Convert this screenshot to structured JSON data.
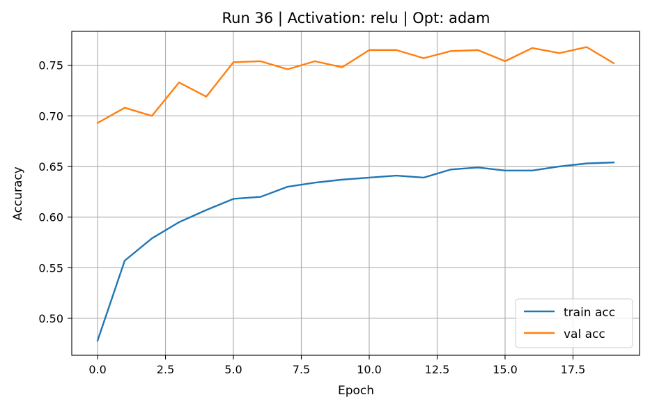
{
  "chart_data": {
    "type": "line",
    "title": "Run 36 | Activation: relu | Opt: adam",
    "xlabel": "Epoch",
    "ylabel": "Accuracy",
    "xlim": [
      -0.95,
      19.95
    ],
    "ylim": [
      0.4635,
      0.7835
    ],
    "x_ticks": [
      0,
      2.5,
      5,
      7.5,
      10,
      12.5,
      15,
      17.5
    ],
    "x_tick_labels": [
      "0.0",
      "2.5",
      "5.0",
      "7.5",
      "10.0",
      "12.5",
      "15.0",
      "17.5"
    ],
    "y_ticks": [
      0.5,
      0.55,
      0.6,
      0.65,
      0.7,
      0.75
    ],
    "y_tick_labels": [
      "0.50",
      "0.55",
      "0.60",
      "0.65",
      "0.70",
      "0.75"
    ],
    "grid": true,
    "legend_position": "bottom-right",
    "x": [
      0,
      1,
      2,
      3,
      4,
      5,
      6,
      7,
      8,
      9,
      10,
      11,
      12,
      13,
      14,
      15,
      16,
      17,
      18,
      19
    ],
    "series": [
      {
        "name": "train acc",
        "color": "#1f77b4",
        "values": [
          0.478,
          0.557,
          0.579,
          0.595,
          0.607,
          0.618,
          0.62,
          0.63,
          0.634,
          0.637,
          0.639,
          0.641,
          0.639,
          0.647,
          0.649,
          0.646,
          0.646,
          0.65,
          0.653,
          0.654
        ]
      },
      {
        "name": "val acc",
        "color": "#ff7f0e",
        "values": [
          0.693,
          0.708,
          0.7,
          0.733,
          0.719,
          0.753,
          0.754,
          0.746,
          0.754,
          0.748,
          0.765,
          0.765,
          0.757,
          0.764,
          0.765,
          0.754,
          0.767,
          0.762,
          0.768,
          0.752
        ]
      }
    ]
  }
}
